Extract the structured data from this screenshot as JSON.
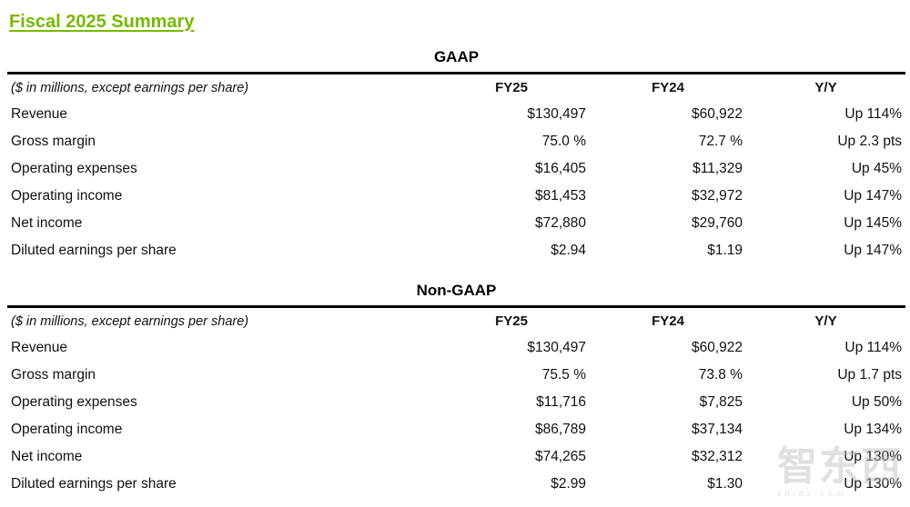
{
  "page": {
    "title": "Fiscal 2025 Summary"
  },
  "colors": {
    "accent_green": "#76b900",
    "text": "#111111",
    "rule": "#000000",
    "watermark_gray": "#bbbbbb"
  },
  "tables": [
    {
      "section_title": "GAAP",
      "note": "($ in millions, except earnings per share)",
      "columns": [
        "FY25",
        "FY24",
        "Y/Y"
      ],
      "rows": [
        {
          "label": "Revenue",
          "fy25": "$130,497",
          "fy24": "$60,922",
          "yy": "Up 114%"
        },
        {
          "label": "Gross margin",
          "fy25": "75.0 %",
          "fy24": "72.7 %",
          "yy": "Up 2.3 pts"
        },
        {
          "label": "Operating expenses",
          "fy25": "$16,405",
          "fy24": "$11,329",
          "yy": "Up 45%"
        },
        {
          "label": "Operating income",
          "fy25": "$81,453",
          "fy24": "$32,972",
          "yy": "Up 147%"
        },
        {
          "label": "Net income",
          "fy25": "$72,880",
          "fy24": "$29,760",
          "yy": "Up 145%"
        },
        {
          "label": "Diluted earnings per share",
          "fy25": "$2.94",
          "fy24": "$1.19",
          "yy": "Up 147%"
        }
      ]
    },
    {
      "section_title": "Non-GAAP",
      "note": "($ in millions, except earnings per share)",
      "columns": [
        "FY25",
        "FY24",
        "Y/Y"
      ],
      "rows": [
        {
          "label": "Revenue",
          "fy25": "$130,497",
          "fy24": "$60,922",
          "yy": "Up 114%"
        },
        {
          "label": "Gross margin",
          "fy25": "75.5 %",
          "fy24": "73.8 %",
          "yy": "Up 1.7 pts"
        },
        {
          "label": "Operating expenses",
          "fy25": "$11,716",
          "fy24": "$7,825",
          "yy": "Up 50%"
        },
        {
          "label": "Operating income",
          "fy25": "$86,789",
          "fy24": "$37,134",
          "yy": "Up 134%"
        },
        {
          "label": "Net income",
          "fy25": "$74,265",
          "fy24": "$32,312",
          "yy": "Up 130%"
        },
        {
          "label": "Diluted earnings per share",
          "fy25": "$2.99",
          "fy24": "$1.30",
          "yy": "Up 130%"
        }
      ]
    }
  ],
  "watermark": {
    "logo_text": "智东西",
    "sub_text": "zhidx.com"
  }
}
